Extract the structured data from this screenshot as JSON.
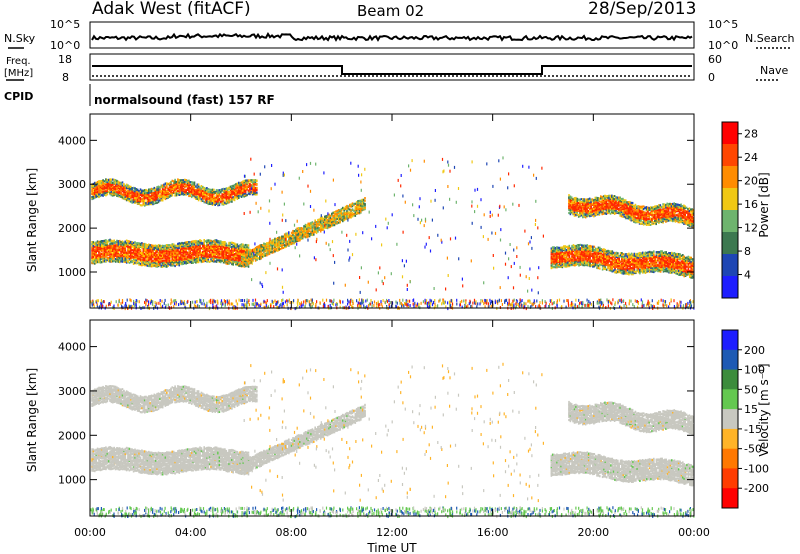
{
  "header": {
    "station": "Adak West (fitACF)",
    "beam": "Beam 02",
    "date": "28/Sep/2013"
  },
  "noise_panel": {
    "left_label": "N.Sky",
    "right_label": "N.Search",
    "left_ticks": [
      "10^5",
      "10^0"
    ],
    "right_ticks": [
      "10^5",
      "10^0"
    ]
  },
  "freq_panel": {
    "left_label_1": "Freq.",
    "left_label_2": "[MHz]",
    "left_ticks": [
      "18",
      "8"
    ],
    "right_label": "Nave",
    "right_ticks": [
      "60",
      "0"
    ],
    "cpid_label": "CPID",
    "cpid_text": "normalsound (fast) 157 RF"
  },
  "chart_data": [
    {
      "type": "heatmap",
      "title": "",
      "ylabel": "Slant Range [km]",
      "xlabel": "Time UT",
      "x_ticks": [
        "00:00",
        "04:00",
        "08:00",
        "12:00",
        "16:00",
        "20:00",
        "00:00"
      ],
      "y_ticks": [
        1000,
        2000,
        3000,
        4000
      ],
      "ylim": [
        180,
        4600
      ],
      "xlim_hours": [
        0,
        24
      ],
      "colorbar": {
        "label": "Power [dB]",
        "ticks": [
          4,
          8,
          12,
          16,
          20,
          24,
          28
        ],
        "range": [
          0,
          30
        ],
        "colors": [
          "#1e1eff",
          "#1e46b4",
          "#3c7850",
          "#6eb46e",
          "#f0c814",
          "#ff8c00",
          "#ff4600",
          "#ff0000"
        ]
      },
      "scatter_bands": [
        {
          "name": "upper band",
          "start_h": 0.0,
          "end_h": 6.5,
          "range_km": [
            2600,
            3100
          ],
          "level": "high"
        },
        {
          "name": "lower band",
          "start_h": 0.0,
          "end_h": 6.5,
          "range_km": [
            1150,
            1850
          ],
          "level": "high"
        },
        {
          "name": "rising band",
          "start_h": 6.0,
          "end_h": 10.8,
          "range_km": [
            1100,
            2600
          ],
          "level": "medium"
        },
        {
          "name": "evening upper band",
          "start_h": 19.0,
          "end_h": 24.0,
          "range_km": [
            2150,
            2900
          ],
          "level": "high"
        },
        {
          "name": "evening lower band",
          "start_h": 18.3,
          "end_h": 24.0,
          "range_km": [
            1000,
            2000
          ],
          "level": "high"
        }
      ]
    },
    {
      "type": "heatmap",
      "title": "",
      "ylabel": "Slant Range [km]",
      "xlabel": "Time UT",
      "x_ticks": [
        "00:00",
        "04:00",
        "08:00",
        "12:00",
        "16:00",
        "20:00",
        "00:00"
      ],
      "y_ticks": [
        1000,
        2000,
        3000,
        4000
      ],
      "ylim": [
        180,
        4600
      ],
      "xlim_hours": [
        0,
        24
      ],
      "colorbar": {
        "label": "Velocity [m s⁻¹]",
        "ticks": [
          200,
          100,
          50,
          15,
          -15,
          -50,
          -100,
          -200
        ],
        "colors": [
          "#1e1eff",
          "#1e5ab4",
          "#3c8c3c",
          "#64c850",
          "#c8c8c0",
          "#ffb428",
          "#ff7800",
          "#ff3c00",
          "#ff0000"
        ]
      },
      "dominant_value": "ground scatter (grey, -15 to 15 m/s)"
    }
  ]
}
